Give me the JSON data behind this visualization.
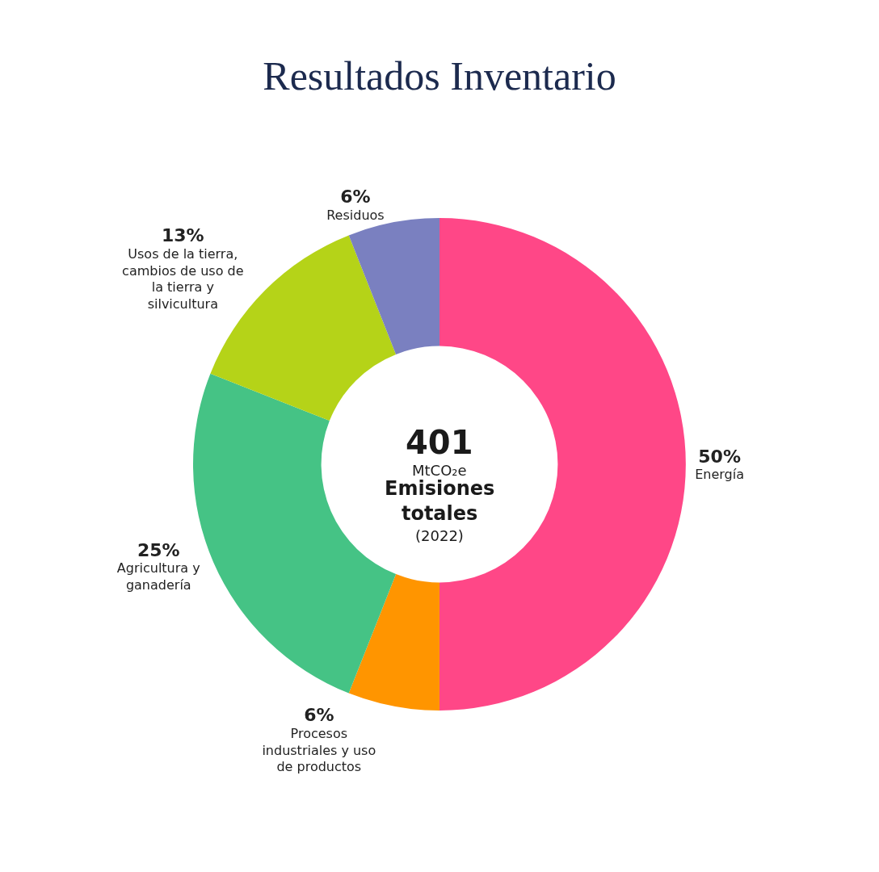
{
  "chart_data": {
    "type": "donut",
    "title": "Resultados Inventario",
    "categories": [
      "Energía",
      "Procesos industriales y uso de productos",
      "Agricultura y ganadería",
      "Usos de la tierra, cambios de uso de la tierra y silvicultura",
      "Residuos"
    ],
    "values": [
      50,
      6,
      25,
      13,
      6
    ],
    "value_labels": [
      "50%",
      "6%",
      "25%",
      "13%",
      "6%"
    ],
    "colors": [
      "#ff4787",
      "#ff9500",
      "#45c385",
      "#b5d318",
      "#7a80c0"
    ],
    "annotations": [
      "401",
      "MtCO₂e",
      "Emisiones totales",
      "(2022)"
    ],
    "legend": false
  }
}
